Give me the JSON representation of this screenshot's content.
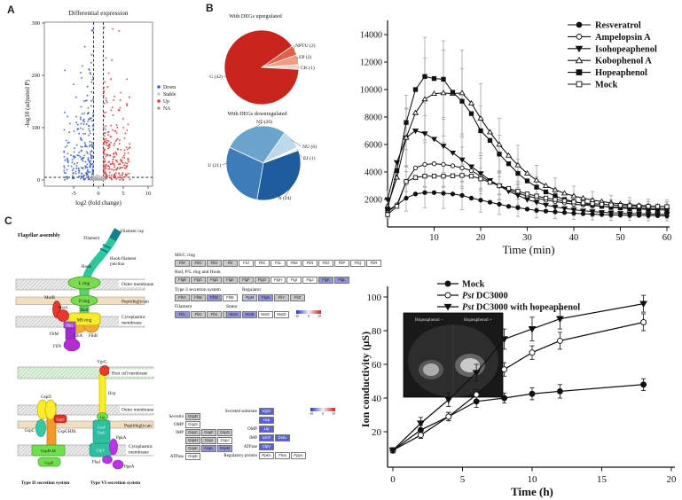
{
  "panels": {
    "a": "A",
    "b": "B",
    "c": "C"
  },
  "chart_data": [
    {
      "id": "volcano",
      "type": "scatter",
      "title": "Differential expression",
      "xlabel": "log2 (fold change)",
      "ylabel": "-log10 (adjusted P)",
      "xlim": [
        -9.5,
        11
      ],
      "ylim": [
        -12,
        310
      ],
      "xticks": [
        -5,
        0,
        5,
        10
      ],
      "yticks": [
        0,
        100,
        200,
        300
      ],
      "vlines": [
        -1,
        1
      ],
      "hline": 5,
      "legend": [
        {
          "label": "Down",
          "color": "#3A5FCD"
        },
        {
          "label": "Stable",
          "color": "#C8C8C8"
        },
        {
          "label": "Up",
          "color": "#E23A3A"
        },
        {
          "label": "NA",
          "color": "#9A9A9A"
        }
      ],
      "clusters": [
        {
          "name": "Down",
          "color": "#3A5FCD",
          "n": 240,
          "sign": -1,
          "xmin": 1.05,
          "xspread": 5.9,
          "yscale": 62,
          "ycap": 286
        },
        {
          "name": "Up",
          "color": "#E23A3A",
          "n": 240,
          "sign": 1,
          "xmin": 1.05,
          "xspread": 5.3,
          "yscale": 62,
          "ycap": 292
        },
        {
          "name": "Stable",
          "color": "#C8C8C8",
          "n": 130,
          "sign": 0,
          "xmin": -1.25,
          "xspread": 2.5,
          "yscale": 2.6,
          "ycap": 9
        },
        {
          "name": "NA",
          "color": "#ABABAB",
          "n": 40,
          "sign": 0,
          "xmin": -1.6,
          "xspread": 3.2,
          "yscale": 1.6,
          "ycap": 5
        }
      ]
    },
    {
      "id": "pie_up",
      "type": "pie",
      "title": "With DEGs upregulated",
      "slices": [
        {
          "label": "NPTU (2)",
          "value": 2,
          "color": "#E0604A"
        },
        {
          "label": "EP (2)",
          "value": 2,
          "color": "#EF9D83"
        },
        {
          "label": "CK (1)",
          "value": 1,
          "color": "#F8D2C2"
        },
        {
          "label": "G (42)",
          "value": 42,
          "color": "#C8251D"
        }
      ],
      "start_angle": -35
    },
    {
      "id": "pie_down",
      "type": "pie",
      "title": "With DEGs downregulated",
      "slices": [
        {
          "label": "NT (20)",
          "value": 20,
          "color": "#6BA5CE"
        },
        {
          "label": "NU (6)",
          "value": 6,
          "color": "#BCD8EA"
        },
        {
          "label": "EJ (1)",
          "value": 1,
          "color": "#F2F7FB"
        },
        {
          "label": "N (24)",
          "value": 24,
          "color": "#1E5C9E"
        },
        {
          "label": "U (21)",
          "value": 21,
          "color": "#3D7CB6"
        }
      ],
      "start_angle": -155
    },
    {
      "id": "timecourse",
      "type": "line",
      "xlabel": "Time (min)",
      "xticks": [
        10,
        20,
        30,
        40,
        50,
        60
      ],
      "yticks": [
        2000,
        4000,
        6000,
        8000,
        10000,
        12000,
        14000
      ],
      "x_step": 2,
      "series": [
        {
          "label": "Resveratrol",
          "marker": "circle",
          "filled": true,
          "err_frac": 0.45,
          "values": [
            1100,
            1600,
            2100,
            2400,
            2500,
            2500,
            2450,
            2400,
            2300,
            2100,
            1950,
            1800,
            1650,
            1500,
            1400,
            1300,
            1200,
            1150,
            1100,
            1050,
            1000,
            960,
            930,
            900,
            880,
            860,
            850,
            840,
            830,
            820,
            810
          ]
        },
        {
          "label": "Ampelopsin A",
          "marker": "circle",
          "filled": false,
          "err_frac": 0.35,
          "values": [
            1200,
            1600,
            3300,
            4300,
            4550,
            4600,
            4550,
            4450,
            4300,
            4100,
            3700,
            3300,
            3000,
            2700,
            2450,
            2250,
            2100,
            1950,
            1850,
            1750,
            1650,
            1600,
            1550,
            1500,
            1460,
            1430,
            1400,
            1380,
            1360,
            1340,
            1330
          ]
        },
        {
          "label": "Isohopeaphenol",
          "marker": "tri-down",
          "filled": true,
          "err_frac": 0.33,
          "values": [
            2000,
            4700,
            6500,
            7000,
            6800,
            6400,
            5900,
            5400,
            4900,
            4400,
            3900,
            3400,
            3000,
            2600,
            2300,
            2000,
            1800,
            1600,
            1450,
            1350,
            1250,
            1180,
            1120,
            1070,
            1030,
            1000,
            980,
            960,
            940,
            930,
            920
          ]
        },
        {
          "label": "Kobophenol A",
          "marker": "tri-up",
          "filled": false,
          "err_frac": 0.32,
          "values": [
            1500,
            3600,
            6500,
            8300,
            9300,
            9700,
            9750,
            9700,
            9750,
            9000,
            7900,
            6900,
            6000,
            5200,
            4500,
            3900,
            3400,
            3000,
            2700,
            2450,
            2250,
            2100,
            1950,
            1850,
            1750,
            1680,
            1620,
            1570,
            1530,
            1500,
            1480
          ]
        },
        {
          "label": "Hopeaphenol",
          "marker": "square",
          "filled": true,
          "err_frac": 0.26,
          "values": [
            1300,
            4100,
            7600,
            10000,
            10950,
            10800,
            10750,
            9800,
            9150,
            8250,
            7000,
            6300,
            5300,
            4600,
            3900,
            3350,
            2900,
            2550,
            2250,
            2000,
            1850,
            1700,
            1600,
            1500,
            1430,
            1380,
            1330,
            1300,
            1270,
            1250,
            1230
          ]
        },
        {
          "label": "Mock",
          "marker": "square",
          "filled": false,
          "err_frac": 0.22,
          "values": [
            900,
            1500,
            3300,
            3600,
            3700,
            3700,
            3700,
            3720,
            3750,
            3700,
            3500,
            3250,
            3000,
            2800,
            2600,
            2400,
            2250,
            2100,
            2000,
            1900,
            1820,
            1750,
            1700,
            1650,
            1600,
            1570,
            1540,
            1520,
            1500,
            1490,
            1480
          ]
        }
      ]
    },
    {
      "id": "conductivity",
      "type": "line",
      "xlabel": "Time (h)",
      "ylabel": "Ion conductivity (μS)",
      "xticks": [
        0,
        5,
        10,
        15,
        20
      ],
      "yticks": [
        20,
        40,
        60,
        80,
        100
      ],
      "inset_labels": [
        "Hopeaphenol −",
        "Hopeaphenol +"
      ],
      "series": [
        {
          "label": "Mock",
          "marker": "circle",
          "filled": true,
          "x": [
            0,
            2,
            4,
            6,
            8,
            10,
            12,
            18
          ],
          "y": [
            9,
            21,
            29,
            38,
            40,
            42.5,
            44,
            48
          ],
          "err": [
            1.5,
            3,
            2.5,
            3.5,
            3,
            3.5,
            4,
            3.5
          ]
        },
        {
          "label": "Pst DC3000",
          "italic_prefix": "Pst",
          "marker": "circle",
          "filled": false,
          "x": [
            0,
            2,
            4,
            6,
            8,
            10,
            12,
            18
          ],
          "y": [
            9,
            18,
            29,
            42,
            57,
            67,
            74,
            85
          ],
          "err": [
            1.5,
            2,
            2.5,
            3,
            4,
            4,
            5,
            5
          ]
        },
        {
          "label": "Pst DC3000 with hopeaphenol",
          "italic_prefix": "Pst",
          "marker": "tri-down",
          "filled": true,
          "x": [
            0,
            2,
            4,
            6,
            8,
            10,
            12,
            18
          ],
          "y": [
            9,
            25,
            39,
            55,
            75,
            81,
            87,
            96
          ],
          "err": [
            1.5,
            3.5,
            4,
            5,
            6,
            7,
            6,
            5
          ]
        }
      ]
    }
  ],
  "flagellar": {
    "labels": [
      "Flagellar assembly",
      "Filament cap",
      "Filament",
      "Hook-filament",
      "junction",
      "Hook",
      "L ring",
      "P ring",
      "Rod",
      "MS ring",
      "Outer membrane",
      "Peptidoglycan",
      "Cytoplasmic",
      "membrane",
      "MotB",
      "MotA",
      "FliG",
      "FliM",
      "FliN",
      "FlhA",
      "FlhB"
    ]
  },
  "flagellar_heatmap": {
    "groups": [
      {
        "title": "MS/C ring",
        "cells": [
          [
            "FliF",
            "g"
          ],
          [
            "FliG",
            "g"
          ],
          [
            "FliH",
            "g"
          ],
          [
            "FliI",
            "g"
          ],
          [
            "FliJ",
            "w"
          ],
          [
            "FliK",
            "w"
          ],
          [
            "FliL",
            "w"
          ],
          [
            "FliM",
            "w"
          ],
          [
            "FliN",
            "w"
          ],
          [
            "FliO",
            "w"
          ],
          [
            "FliP",
            "w"
          ],
          [
            "FliQ",
            "w"
          ],
          [
            "FliR",
            "w"
          ]
        ]
      },
      {
        "title": "Rod, P/L ring and Hook",
        "cells": [
          [
            "FlgB",
            "g"
          ],
          [
            "FlgC",
            "g"
          ],
          [
            "FlgD",
            "g"
          ],
          [
            "FlgE",
            "g"
          ],
          [
            "FlgF",
            "g"
          ],
          [
            "FlgG",
            "g"
          ],
          [
            "FlgH",
            "w"
          ],
          [
            "FlgI",
            "w"
          ],
          [
            "FlgJ",
            "w"
          ],
          [
            "FlgK",
            "b"
          ],
          [
            "FlgL",
            "b"
          ]
        ]
      },
      {
        "title": "Type 3 secretion system",
        "cells": [
          [
            "FlhA",
            "g"
          ],
          [
            "FlhB",
            "g"
          ],
          [
            "FlhD",
            "b"
          ],
          [
            "FlhE",
            "w"
          ]
        ]
      },
      {
        "title": "Regulator",
        "cells": [
          [
            "FlgM",
            "lb"
          ],
          [
            "FlgN",
            "b"
          ],
          [
            "FliY",
            "g"
          ],
          [
            "FliZ",
            "g"
          ]
        ]
      },
      {
        "title": "Filament",
        "cells": [
          [
            "FliC",
            "b"
          ],
          [
            "FliD",
            "g"
          ],
          [
            "FliS",
            "g"
          ],
          [
            "FliT",
            "g"
          ]
        ]
      },
      {
        "title": "Stator",
        "cells": [
          [
            "MotA",
            "b"
          ],
          [
            "MotB",
            "b"
          ],
          [
            "MotC",
            "w"
          ],
          [
            "MotD",
            "w"
          ]
        ]
      }
    ],
    "scale": [
      "-10",
      "0",
      "10"
    ]
  },
  "secretion": {
    "labels": [
      "Host cell membrane",
      "VgrG",
      "Hcp",
      "Outer membrane",
      "GspD",
      "GspS",
      "Peptidoglycan",
      "GspC",
      "GspGHJK",
      "Lip",
      "IcmF",
      "DotU",
      "Cytoplasmic",
      "membrane",
      "GspFLM",
      "GspE",
      "ClpV",
      "PpkA",
      "FhaI",
      "PppA",
      "Type II secretion system",
      "Type VI secretion system"
    ]
  },
  "secretion_heatmap": {
    "t2ss": [
      {
        "label": "Secretin",
        "cells": [
          [
            "GspD",
            "g"
          ]
        ]
      },
      {
        "label": "OMP",
        "cells": [
          [
            "GspS",
            "w"
          ]
        ]
      },
      {
        "label": "IMP",
        "cells": [
          [
            "GspC",
            "g"
          ],
          [
            "GspF",
            "g"
          ],
          [
            "GspG",
            "g"
          ]
        ]
      },
      {
        "label": "",
        "cells": [
          [
            "GspH",
            "g"
          ],
          [
            "GspI",
            "g"
          ],
          [
            "GspJ",
            "w"
          ]
        ]
      },
      {
        "label": "",
        "cells": [
          [
            "GspK",
            "g"
          ],
          [
            "GspL",
            "b"
          ],
          [
            "GspM",
            "b"
          ]
        ]
      },
      {
        "label": "ATPase",
        "cells": [
          [
            "GspE",
            "w"
          ]
        ]
      }
    ],
    "t6ss": [
      {
        "label": "Secreted substrate",
        "cells": [
          [
            "VgrG",
            "db"
          ]
        ]
      },
      {
        "label": "",
        "cells": [
          [
            "Hcp",
            "db"
          ]
        ]
      },
      {
        "label": "OMP",
        "cells": [
          [
            "Lip",
            "db"
          ]
        ]
      },
      {
        "label": "IMP",
        "cells": [
          [
            "IcmF",
            "db"
          ],
          [
            "DotU",
            "db"
          ]
        ]
      },
      {
        "label": "ATPase",
        "cells": [
          [
            "ClpV",
            "db"
          ]
        ]
      },
      {
        "label": "Regulatory protein",
        "cells": [
          [
            "PpkA",
            "w"
          ],
          [
            "FhaI",
            "w"
          ],
          [
            "PppA",
            "w"
          ]
        ]
      }
    ],
    "scale": [
      "-10",
      "0",
      "10"
    ]
  }
}
